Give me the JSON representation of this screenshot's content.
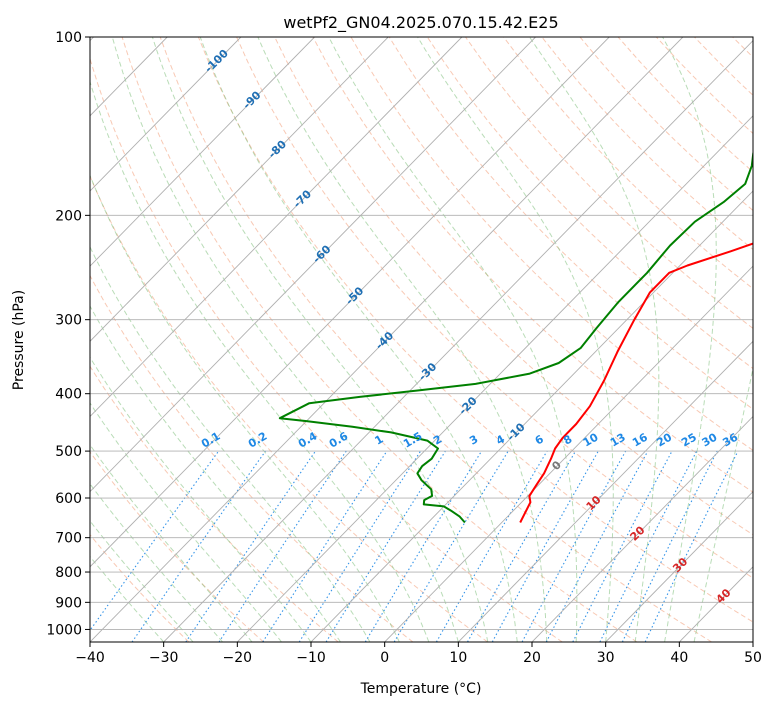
{
  "chart_data": {
    "type": "line",
    "title": "wetPf2_GN04.2025.070.15.42.E25",
    "xlabel": "Temperature (°C)",
    "ylabel": "Pressure (hPa)",
    "xlim": [
      -40,
      50
    ],
    "ylim": [
      1050,
      100
    ],
    "y_scale": "log",
    "grid": true,
    "x_ticks": [
      -40,
      -30,
      -20,
      -10,
      0,
      10,
      20,
      30,
      40,
      50
    ],
    "y_ticks": [
      100,
      200,
      300,
      400,
      500,
      600,
      700,
      800,
      900,
      1000
    ],
    "colors": {
      "temperature": "#ff0000",
      "dewpoint": "#008000",
      "isotherm": "#b0b0b0",
      "dry_adiabat": "#f4a582",
      "moist_adiabat": "#7fbf7b",
      "mixing_ratio": "#1e88e5",
      "isotherm_label": "#1f6fb4",
      "warm_isotherm_label": "#d62728",
      "zero_label": "#777777"
    },
    "isotherm_labels": [
      {
        "t": -100,
        "p": 110,
        "text": "-100"
      },
      {
        "t": -90,
        "p": 128,
        "text": "-90"
      },
      {
        "t": -80,
        "p": 155,
        "text": "-80"
      },
      {
        "t": -70,
        "p": 188,
        "text": "-70"
      },
      {
        "t": -60,
        "p": 233,
        "text": "-60"
      },
      {
        "t": -50,
        "p": 274,
        "text": "-50"
      },
      {
        "t": -40,
        "p": 326,
        "text": "-40"
      },
      {
        "t": -30,
        "p": 368,
        "text": "-30"
      },
      {
        "t": -20,
        "p": 420,
        "text": "-20"
      },
      {
        "t": -10,
        "p": 465,
        "text": "-10"
      },
      {
        "t": 0,
        "p": 530,
        "text": "0"
      },
      {
        "t": 10,
        "p": 613,
        "text": "10"
      },
      {
        "t": 20,
        "p": 690,
        "text": "20"
      },
      {
        "t": 30,
        "p": 780,
        "text": "30"
      },
      {
        "t": 40,
        "p": 880,
        "text": "40"
      }
    ],
    "mixing_ratio_labels": [
      "0.1",
      "0.2",
      "0.4",
      "0.6",
      "1",
      "1.5",
      "2",
      "3",
      "4",
      "6",
      "8",
      "10",
      "13",
      "16",
      "20",
      "25",
      "30",
      "36"
    ],
    "series": [
      {
        "name": "Temperature",
        "points": [
          {
            "p": 660,
            "t": 2.5
          },
          {
            "p": 640,
            "t": 2.0
          },
          {
            "p": 610,
            "t": 1.2
          },
          {
            "p": 595,
            "t": 0.2
          },
          {
            "p": 570,
            "t": -0.3
          },
          {
            "p": 545,
            "t": -0.8
          },
          {
            "p": 515,
            "t": -1.8
          },
          {
            "p": 495,
            "t": -2.6
          },
          {
            "p": 475,
            "t": -3.0
          },
          {
            "p": 450,
            "t": -3.0
          },
          {
            "p": 420,
            "t": -3.5
          },
          {
            "p": 380,
            "t": -5.0
          },
          {
            "p": 340,
            "t": -7.0
          },
          {
            "p": 300,
            "t": -9.0
          },
          {
            "p": 270,
            "t": -10.5
          },
          {
            "p": 250,
            "t": -10.5
          },
          {
            "p": 243,
            "t": -9.0
          },
          {
            "p": 230,
            "t": -5.0
          },
          {
            "p": 215,
            "t": -0.5
          },
          {
            "p": 200,
            "t": 2.5
          },
          {
            "p": 183,
            "t": 5.5
          },
          {
            "p": 165,
            "t": 9.0
          },
          {
            "p": 150,
            "t": 12.0
          },
          {
            "p": 140,
            "t": 14.0
          },
          {
            "p": 130,
            "t": 15.5
          },
          {
            "p": 120,
            "t": 17.0
          },
          {
            "p": 112,
            "t": 19.0
          },
          {
            "p": 105,
            "t": 20.5
          },
          {
            "p": 100,
            "t": 21.0
          }
        ]
      },
      {
        "name": "Dewpoint",
        "points": [
          {
            "p": 660,
            "t": -5.0
          },
          {
            "p": 645,
            "t": -6.5
          },
          {
            "p": 630,
            "t": -8.5
          },
          {
            "p": 620,
            "t": -10.0
          },
          {
            "p": 615,
            "t": -13.0
          },
          {
            "p": 605,
            "t": -13.5
          },
          {
            "p": 595,
            "t": -13.0
          },
          {
            "p": 580,
            "t": -14.0
          },
          {
            "p": 560,
            "t": -16.5
          },
          {
            "p": 545,
            "t": -18.0
          },
          {
            "p": 530,
            "t": -18.3
          },
          {
            "p": 515,
            "t": -18.0
          },
          {
            "p": 495,
            "t": -18.5
          },
          {
            "p": 480,
            "t": -21.0
          },
          {
            "p": 465,
            "t": -27.0
          },
          {
            "p": 455,
            "t": -33.0
          },
          {
            "p": 445,
            "t": -40.0
          },
          {
            "p": 440,
            "t": -44.0
          },
          {
            "p": 415,
            "t": -42.0
          },
          {
            "p": 405,
            "t": -36.0
          },
          {
            "p": 395,
            "t": -29.0
          },
          {
            "p": 385,
            "t": -22.0
          },
          {
            "p": 370,
            "t": -16.0
          },
          {
            "p": 355,
            "t": -13.5
          },
          {
            "p": 335,
            "t": -12.5
          },
          {
            "p": 310,
            "t": -13.0
          },
          {
            "p": 280,
            "t": -13.5
          },
          {
            "p": 250,
            "t": -13.5
          },
          {
            "p": 225,
            "t": -14.0
          },
          {
            "p": 205,
            "t": -13.8
          },
          {
            "p": 190,
            "t": -12.5
          },
          {
            "p": 177,
            "t": -12.0
          },
          {
            "p": 165,
            "t": -13.5
          },
          {
            "p": 157,
            "t": -15.0
          },
          {
            "p": 150,
            "t": -15.0
          },
          {
            "p": 142,
            "t": -13.5
          },
          {
            "p": 132,
            "t": -11.0
          },
          {
            "p": 120,
            "t": -8.5
          },
          {
            "p": 110,
            "t": -5.5
          },
          {
            "p": 103,
            "t": -3.0
          },
          {
            "p": 100,
            "t": -2.5
          }
        ]
      }
    ]
  }
}
